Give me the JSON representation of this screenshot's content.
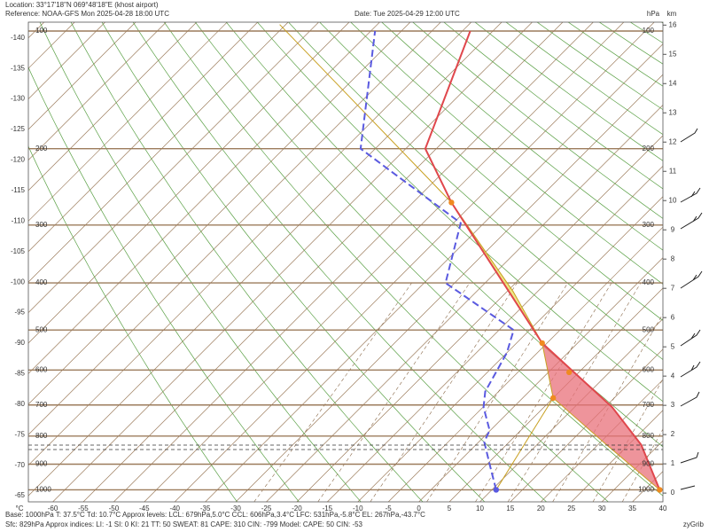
{
  "chart_data": {
    "type": "skew-t",
    "location": "Location:  33°17'18\"N  069°48'18\"E (khost airport)",
    "reference": "Reference: NOAA-GFS Mon 2025-04-28 18:00 UTC",
    "date": "Date: Tue 2025-04-29 12:00 UTC",
    "x_unit": "°C",
    "y_unit": "hPa",
    "y2_unit": "km",
    "xlim": [
      -64,
      40
    ],
    "xticks": [
      -140,
      -135,
      -130,
      -125,
      -120,
      -115,
      -110,
      -105,
      -100,
      -95,
      -90,
      -85,
      -80,
      -75,
      -70,
      -65,
      -60,
      -55,
      -50,
      -45,
      -40,
      -35,
      -30,
      -25,
      -20,
      -15,
      -10,
      -5,
      0,
      5,
      10,
      15,
      20,
      25,
      30,
      35,
      40
    ],
    "yticks": [
      1000,
      900,
      800,
      700,
      600,
      500,
      400,
      300,
      200,
      100
    ],
    "y2lim": [
      -0.3,
      16.1
    ],
    "y2ticks": [
      0,
      1,
      2,
      3,
      4,
      5,
      6,
      7,
      8,
      9,
      10,
      11,
      12,
      13,
      14,
      15,
      16
    ],
    "temperature": {
      "color": "#e0474c",
      "pressure": [
        1000,
        830,
        707,
        531,
        267,
        200,
        100
      ],
      "values": [
        37.5,
        27.1,
        16.2,
        -5.8,
        -43.7,
        -56.8,
        -68.7
      ]
    },
    "dewpoint": {
      "color": "#5a5ae0",
      "pressure": [
        1000,
        918,
        820,
        781,
        707,
        660,
        555,
        500,
        400,
        297,
        200,
        100
      ],
      "values": [
        10.7,
        6.4,
        0.9,
        -0.1,
        -4.9,
        -7.2,
        -10.0,
        -12.6,
        -31.5,
        -38.8,
        -67.4,
        -84.3
      ]
    },
    "parcel": {
      "color": "#c8a020",
      "pressure": [
        1000,
        830,
        679,
        531,
        417,
        267,
        96
      ],
      "values": [
        37.5,
        21.4,
        5.0,
        -5.8,
        -19,
        -43.7,
        -101
      ]
    },
    "ccl": {
      "pressure": 606,
      "value": 3.4
    },
    "cin_color": "#e8707a",
    "cape_color": "#e8e060",
    "footer": [
      "Base: 1000hPa  T: 37.5°C  Td: 10.7°C     Approx levels:  LCL: 679hPa,5.0°C   CCL: 606hPa,3.4°C   LFC: 531hPa,-5.8°C   EL: 267hPa,-43.7°C",
      "Sfc: 829hPa        Approx indices:  LI: -1   SI: 0   KI: 21   TT: 50   SWEAT: 81     CAPE: 310  CIN: -799       Model: CAPE: 50 CIN: -53"
    ],
    "credit": "zyGrib"
  }
}
